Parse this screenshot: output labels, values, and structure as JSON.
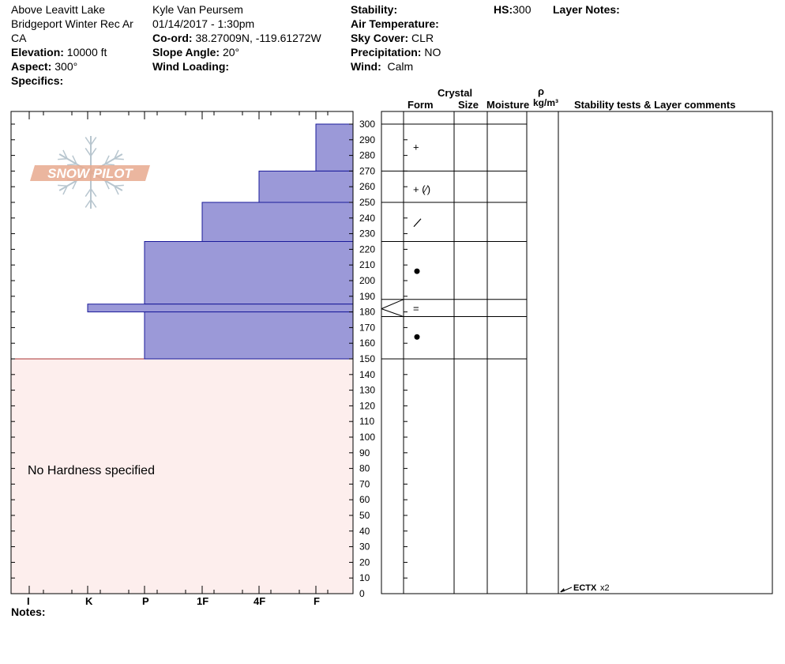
{
  "header": {
    "location_line1": "Above Leavitt Lake",
    "location_line2": "Bridgeport Winter Rec Ar",
    "location_line3": "CA",
    "elevation_label": "Elevation:",
    "elevation_value": "10000 ft",
    "aspect_label": "Aspect:",
    "aspect_value": "300°",
    "specifics_label": "Specifics:",
    "observer": "Kyle Van Peursem",
    "datetime": "01/14/2017 - 1:30pm",
    "coord_label": "Co-ord:",
    "coord_value": "38.27009N, -119.61272W",
    "slope_label": "Slope Angle:",
    "slope_value": "20°",
    "wind_loading_label": "Wind Loading:",
    "stability_label": "Stability:",
    "air_temp_label": "Air Temperature:",
    "sky_label": "Sky Cover:",
    "sky_value": "CLR",
    "precip_label": "Precipitation:",
    "precip_value": "NO",
    "wind_label": "Wind:",
    "wind_value": "Calm",
    "hs_label": "HS:",
    "hs_value": "300",
    "layer_notes_label": "Layer Notes:"
  },
  "columns": {
    "crystal": "Crystal",
    "form": "Form",
    "size": "Size",
    "moisture": "Moisture",
    "rho": "ρ",
    "density_unit": "kg/m³",
    "stability_comments": "Stability tests & Layer comments"
  },
  "logo": {
    "text": "SNOW PILOT"
  },
  "no_hardness_text": "No Hardness specified",
  "notes_label": "Notes:",
  "stability_test": {
    "label": "ECTX",
    "count": "x2",
    "height_cm": 0
  },
  "colors": {
    "layer_fill": "#9b99d8",
    "layer_stroke": "#1a1a9a",
    "nodata_fill": "#fdeeed",
    "logo": "#e8a98e"
  },
  "chart_data": {
    "type": "bar",
    "orientation": "horizontal",
    "title": "",
    "x_axis_categories": [
      "I",
      "K",
      "P",
      "1F",
      "4F",
      "F"
    ],
    "y_range": [
      0,
      300
    ],
    "y_ticks": [
      0,
      10,
      20,
      30,
      40,
      50,
      60,
      70,
      80,
      90,
      100,
      110,
      120,
      130,
      140,
      150,
      160,
      170,
      180,
      190,
      200,
      210,
      220,
      230,
      240,
      250,
      260,
      270,
      280,
      290,
      300
    ],
    "hardness_layers": [
      {
        "bottom": 270,
        "top": 300,
        "hardness": "F"
      },
      {
        "bottom": 250,
        "top": 270,
        "hardness": "4F"
      },
      {
        "bottom": 225,
        "top": 250,
        "hardness": "1F"
      },
      {
        "bottom": 185,
        "top": 225,
        "hardness": "P"
      },
      {
        "bottom": 180,
        "top": 185,
        "hardness": "K"
      },
      {
        "bottom": 150,
        "top": 180,
        "hardness": "P"
      }
    ],
    "no_hardness_below": 150,
    "layer_boundaries": [
      300,
      270,
      250,
      225,
      188,
      177,
      150
    ],
    "crystal_forms": [
      {
        "height": 285,
        "symbol": "+"
      },
      {
        "height": 258,
        "symbol": "+ (⁄)"
      },
      {
        "height": 237,
        "symbol": "⁄"
      },
      {
        "height": 206,
        "symbol": "●"
      },
      {
        "height": 182,
        "symbol": "="
      },
      {
        "height": 164,
        "symbol": "●"
      }
    ]
  }
}
